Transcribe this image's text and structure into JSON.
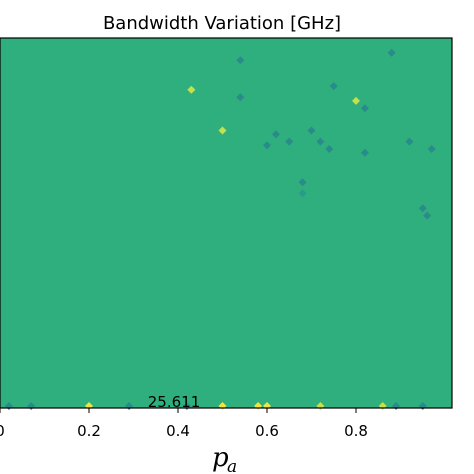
{
  "chart_data": {
    "type": "heatmap",
    "title": "Bandwidth Variation [GHz]",
    "xlabel_main": "p",
    "xlabel_sub": "a",
    "ylabel": "",
    "xlim": [
      0.0,
      0.97
    ],
    "x_ticks": [
      {
        "value": 0.0,
        "label": "0"
      },
      {
        "value": 0.2,
        "label": "0.2"
      },
      {
        "value": 0.4,
        "label": "0.4"
      },
      {
        "value": 0.6,
        "label": "0.6"
      },
      {
        "value": 0.8,
        "label": "0.8"
      }
    ],
    "grid": false,
    "legend": "none",
    "annotation": {
      "text": "25.611",
      "x": 0.38
    },
    "colors": {
      "background": "#2eaf7d",
      "dark_patch": "#2a8b8b",
      "mid_patch": "#2a9b8a",
      "light_patch": "#c5e04a",
      "yellow_patch": "#f0e442",
      "axis": "#000000"
    },
    "patches": [
      {
        "x": 0.54,
        "y_frac": 0.94,
        "level": "dark"
      },
      {
        "x": 0.88,
        "y_frac": 0.96,
        "level": "dark"
      },
      {
        "x": 0.43,
        "y_frac": 0.86,
        "level": "light"
      },
      {
        "x": 0.54,
        "y_frac": 0.84,
        "level": "dark"
      },
      {
        "x": 0.75,
        "y_frac": 0.87,
        "level": "dark"
      },
      {
        "x": 0.8,
        "y_frac": 0.83,
        "level": "light"
      },
      {
        "x": 0.82,
        "y_frac": 0.81,
        "level": "dark"
      },
      {
        "x": 0.5,
        "y_frac": 0.75,
        "level": "light"
      },
      {
        "x": 0.62,
        "y_frac": 0.74,
        "level": "dark"
      },
      {
        "x": 0.65,
        "y_frac": 0.72,
        "level": "dark"
      },
      {
        "x": 0.6,
        "y_frac": 0.71,
        "level": "dark"
      },
      {
        "x": 0.7,
        "y_frac": 0.75,
        "level": "dark"
      },
      {
        "x": 0.72,
        "y_frac": 0.72,
        "level": "dark"
      },
      {
        "x": 0.74,
        "y_frac": 0.7,
        "level": "dark"
      },
      {
        "x": 0.82,
        "y_frac": 0.69,
        "level": "dark"
      },
      {
        "x": 0.92,
        "y_frac": 0.72,
        "level": "dark"
      },
      {
        "x": 0.97,
        "y_frac": 0.7,
        "level": "dark"
      },
      {
        "x": 0.68,
        "y_frac": 0.61,
        "level": "dark"
      },
      {
        "x": 0.68,
        "y_frac": 0.58,
        "level": "mid"
      },
      {
        "x": 0.96,
        "y_frac": 0.52,
        "level": "dark"
      },
      {
        "x": 0.95,
        "y_frac": 0.54,
        "level": "dark"
      },
      {
        "x": 0.02,
        "y_frac": 0.0,
        "level": "dark"
      },
      {
        "x": 0.07,
        "y_frac": 0.0,
        "level": "dark"
      },
      {
        "x": 0.2,
        "y_frac": 0.0,
        "level": "yellow"
      },
      {
        "x": 0.29,
        "y_frac": 0.0,
        "level": "dark"
      },
      {
        "x": 0.42,
        "y_frac": 0.0,
        "level": "dark"
      },
      {
        "x": 0.5,
        "y_frac": 0.0,
        "level": "yellow"
      },
      {
        "x": 0.58,
        "y_frac": 0.0,
        "level": "yellow"
      },
      {
        "x": 0.6,
        "y_frac": 0.0,
        "level": "yellow"
      },
      {
        "x": 0.72,
        "y_frac": 0.0,
        "level": "light"
      },
      {
        "x": 0.86,
        "y_frac": 0.0,
        "level": "light"
      },
      {
        "x": 0.89,
        "y_frac": 0.0,
        "level": "dark"
      },
      {
        "x": 0.95,
        "y_frac": 0.0,
        "level": "dark"
      }
    ]
  }
}
